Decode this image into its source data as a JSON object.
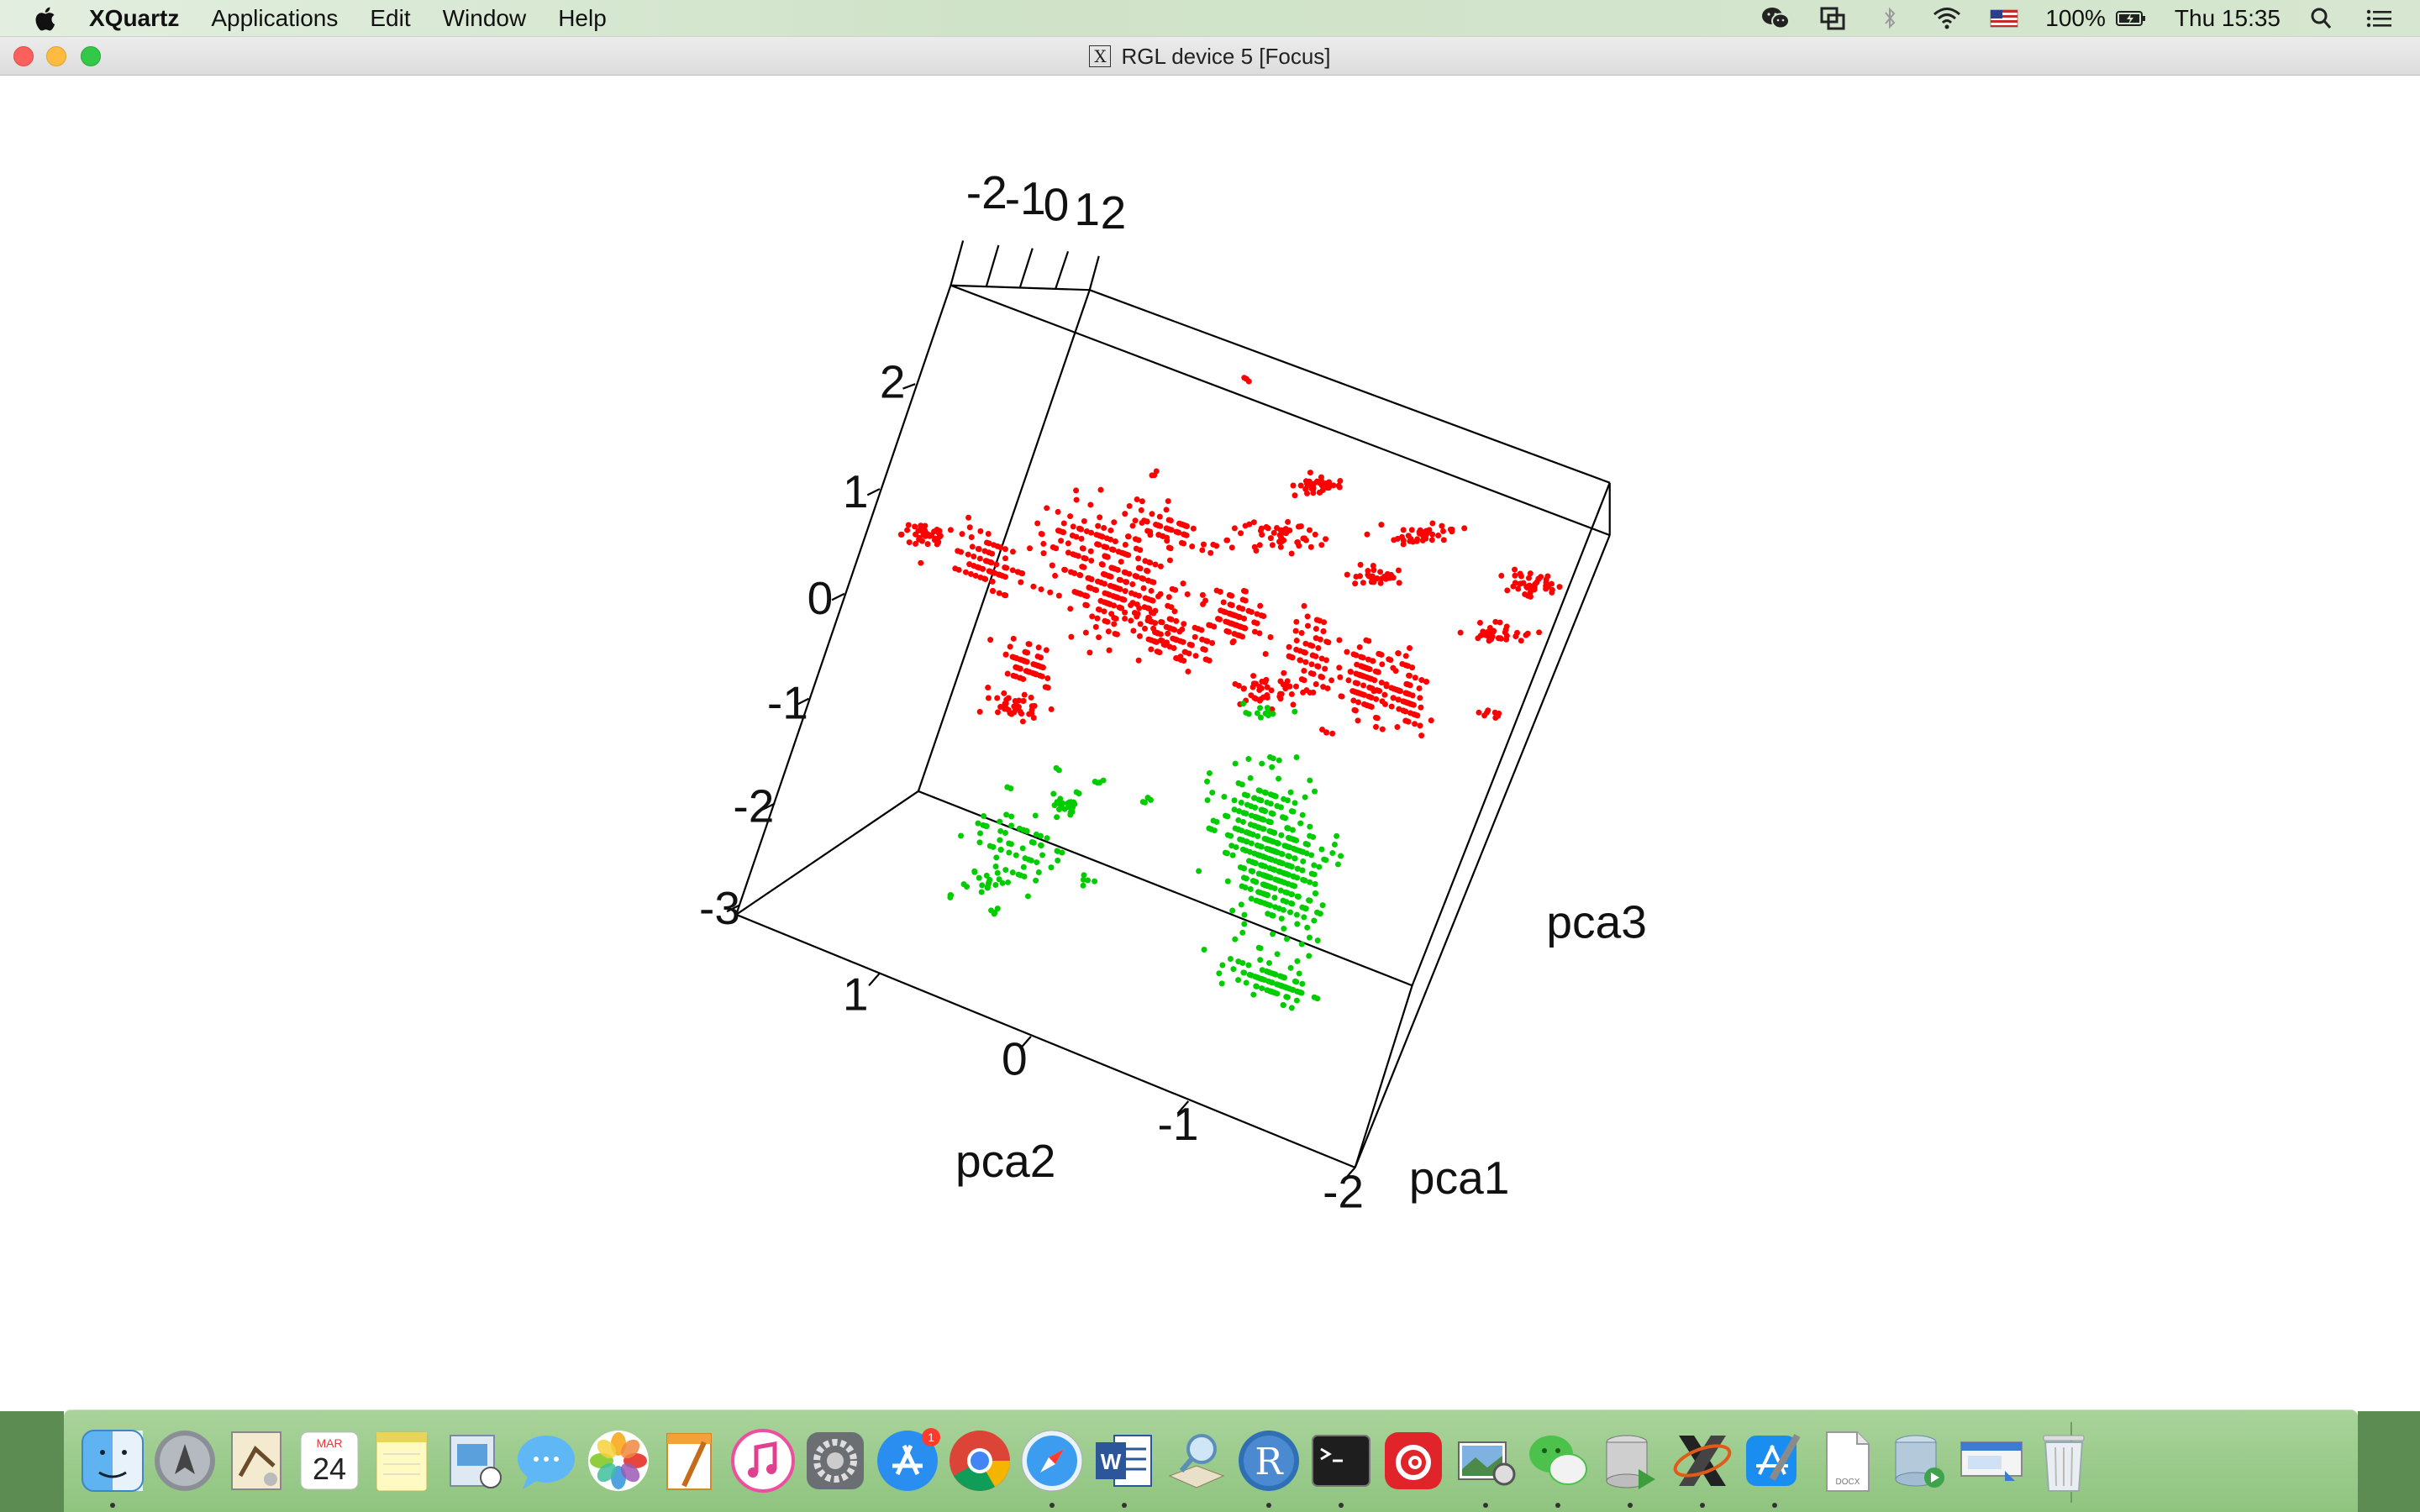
{
  "menubar": {
    "app_name": "XQuartz",
    "items": [
      "Applications",
      "Edit",
      "Window",
      "Help"
    ],
    "battery": "100%",
    "clock": "Thu 15:35",
    "status_icons": [
      "wechat-icon",
      "screen-mirror-icon",
      "bluetooth-icon",
      "wifi-icon",
      "us-flag-icon",
      "battery-icon",
      "spotlight-icon",
      "notification-center-icon"
    ]
  },
  "window": {
    "title": "RGL device 5 [Focus]"
  },
  "chart_data": {
    "type": "scatter",
    "dimensions": 3,
    "title": "",
    "axes": {
      "x": {
        "label": "pca1",
        "ticks": [
          "-2"
        ]
      },
      "y": {
        "label": "pca2",
        "ticks": [
          "1",
          "0",
          "-1"
        ]
      },
      "z": {
        "label": "pca3",
        "ticks": [
          "2",
          "1",
          "0",
          "-1",
          "-2",
          "-3"
        ]
      },
      "top_ticks": [
        "-2",
        "-1",
        "0",
        "1",
        "2"
      ]
    },
    "series": [
      {
        "color": "#ff0000",
        "clusters": [
          {
            "cx": 720,
            "cy": 415,
            "n": 260,
            "sx": 40,
            "sy": 38
          },
          {
            "cx": 640,
            "cy": 405,
            "n": 70,
            "sx": 22,
            "sy": 14
          },
          {
            "cx": 600,
            "cy": 388,
            "n": 40,
            "sx": 14,
            "sy": 10
          },
          {
            "cx": 665,
            "cy": 470,
            "n": 60,
            "sx": 16,
            "sy": 12
          },
          {
            "cx": 660,
            "cy": 498,
            "n": 40,
            "sx": 16,
            "sy": 8
          },
          {
            "cx": 760,
            "cy": 455,
            "n": 80,
            "sx": 30,
            "sy": 12
          },
          {
            "cx": 800,
            "cy": 440,
            "n": 70,
            "sx": 18,
            "sy": 16
          },
          {
            "cx": 760,
            "cy": 385,
            "n": 60,
            "sx": 30,
            "sy": 12
          },
          {
            "cx": 830,
            "cy": 390,
            "n": 50,
            "sx": 22,
            "sy": 10
          },
          {
            "cx": 815,
            "cy": 488,
            "n": 40,
            "sx": 26,
            "sy": 10
          },
          {
            "cx": 848,
            "cy": 465,
            "n": 60,
            "sx": 12,
            "sy": 26
          },
          {
            "cx": 885,
            "cy": 480,
            "n": 90,
            "sx": 14,
            "sy": 26
          },
          {
            "cx": 910,
            "cy": 490,
            "n": 70,
            "sx": 12,
            "sy": 20
          },
          {
            "cx": 853,
            "cy": 356,
            "n": 35,
            "sx": 16,
            "sy": 5
          },
          {
            "cx": 895,
            "cy": 415,
            "n": 30,
            "sx": 18,
            "sy": 5
          },
          {
            "cx": 923,
            "cy": 387,
            "n": 40,
            "sx": 18,
            "sy": 6
          },
          {
            "cx": 994,
            "cy": 420,
            "n": 40,
            "sx": 18,
            "sy": 6
          },
          {
            "cx": 970,
            "cy": 452,
            "n": 35,
            "sx": 18,
            "sy": 6
          },
          {
            "cx": 964,
            "cy": 504,
            "n": 8,
            "sx": 8,
            "sy": 3
          },
          {
            "cx": 808,
            "cy": 287,
            "n": 3,
            "sx": 3,
            "sy": 2
          },
          {
            "cx": 746,
            "cy": 348,
            "n": 3,
            "sx": 3,
            "sy": 2
          },
          {
            "cx": 860,
            "cy": 516,
            "n": 4,
            "sx": 3,
            "sy": 3
          }
        ]
      },
      {
        "color": "#00cc00",
        "clusters": [
          {
            "cx": 823,
            "cy": 592,
            "n": 380,
            "sx": 28,
            "sy": 46
          },
          {
            "cx": 824,
            "cy": 678,
            "n": 80,
            "sx": 24,
            "sy": 10
          },
          {
            "cx": 660,
            "cy": 590,
            "n": 60,
            "sx": 26,
            "sy": 26
          },
          {
            "cx": 690,
            "cy": 565,
            "n": 25,
            "sx": 12,
            "sy": 10
          },
          {
            "cx": 640,
            "cy": 612,
            "n": 18,
            "sx": 14,
            "sy": 8
          },
          {
            "cx": 712,
            "cy": 548,
            "n": 4,
            "sx": 4,
            "sy": 2
          },
          {
            "cx": 743,
            "cy": 561,
            "n": 4,
            "sx": 4,
            "sy": 2
          },
          {
            "cx": 706,
            "cy": 612,
            "n": 5,
            "sx": 4,
            "sy": 3
          },
          {
            "cx": 645,
            "cy": 631,
            "n": 5,
            "sx": 4,
            "sy": 3
          },
          {
            "cx": 616,
            "cy": 622,
            "n": 3,
            "sx": 3,
            "sy": 2
          },
          {
            "cx": 685,
            "cy": 539,
            "n": 2,
            "sx": 2,
            "sy": 2
          },
          {
            "cx": 820,
            "cy": 503,
            "n": 12,
            "sx": 16,
            "sy": 5
          }
        ]
      }
    ]
  },
  "dock": {
    "apps": [
      "Finder",
      "Launchpad",
      "Mail",
      "Calendar",
      "Notes",
      "Preview",
      "Messages",
      "Photos",
      "Pages",
      "iTunes",
      "System Preferences",
      "App Store",
      "Chrome",
      "Safari",
      "Word",
      "Dictionary",
      "R",
      "Terminal",
      "NetEase Music",
      "Image Capture",
      "WeChat",
      "Database",
      "XQuartz",
      "Xcode",
      "Document",
      "Disk Utility",
      "Screen Share",
      "Trash"
    ],
    "calendar_month": "MAR",
    "calendar_day": "24",
    "appstore_badge": "1",
    "document_label": "DOCX"
  }
}
